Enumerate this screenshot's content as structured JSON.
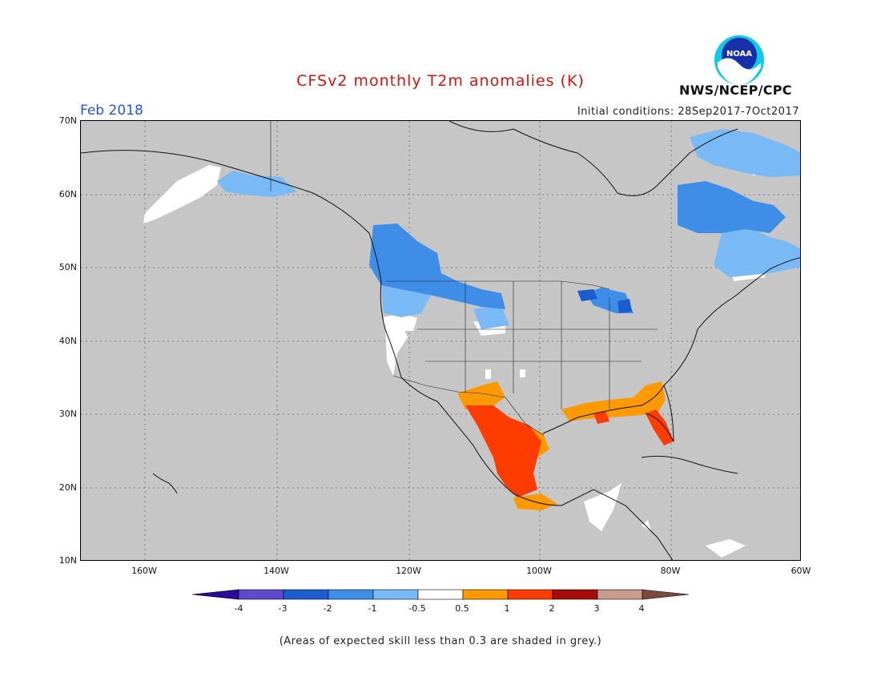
{
  "header": {
    "title": "CFSv2 monthly T2m anomalies (K)",
    "period": "Feb 2018",
    "initial_conditions": "Initial conditions: 28Sep2017-7Oct2017",
    "agency": "NWS/NCEP/CPC",
    "logo_text": "NOAA"
  },
  "map": {
    "lat_labels": [
      "70N",
      "60N",
      "50N",
      "40N",
      "30N",
      "20N",
      "10N"
    ],
    "lon_labels": [
      "160W",
      "140W",
      "120W",
      "100W",
      "80W",
      "60W"
    ],
    "background_color": "#c6c6c6"
  },
  "colorbar": {
    "labels": [
      "-4",
      "-3",
      "-2",
      "-1",
      "-0.5",
      "0.5",
      "1",
      "2",
      "3",
      "4"
    ],
    "colors": [
      "#2a0b99",
      "#5e4acb",
      "#1c5dcd",
      "#3e8ee8",
      "#79b9f5",
      "#ffffff",
      "#ff9900",
      "#ff3c00",
      "#a50d0d",
      "#c79c8d",
      "#7b4a3c"
    ]
  },
  "footnote": "(Areas of expected skill less than 0.3 are shaded in grey.)"
}
